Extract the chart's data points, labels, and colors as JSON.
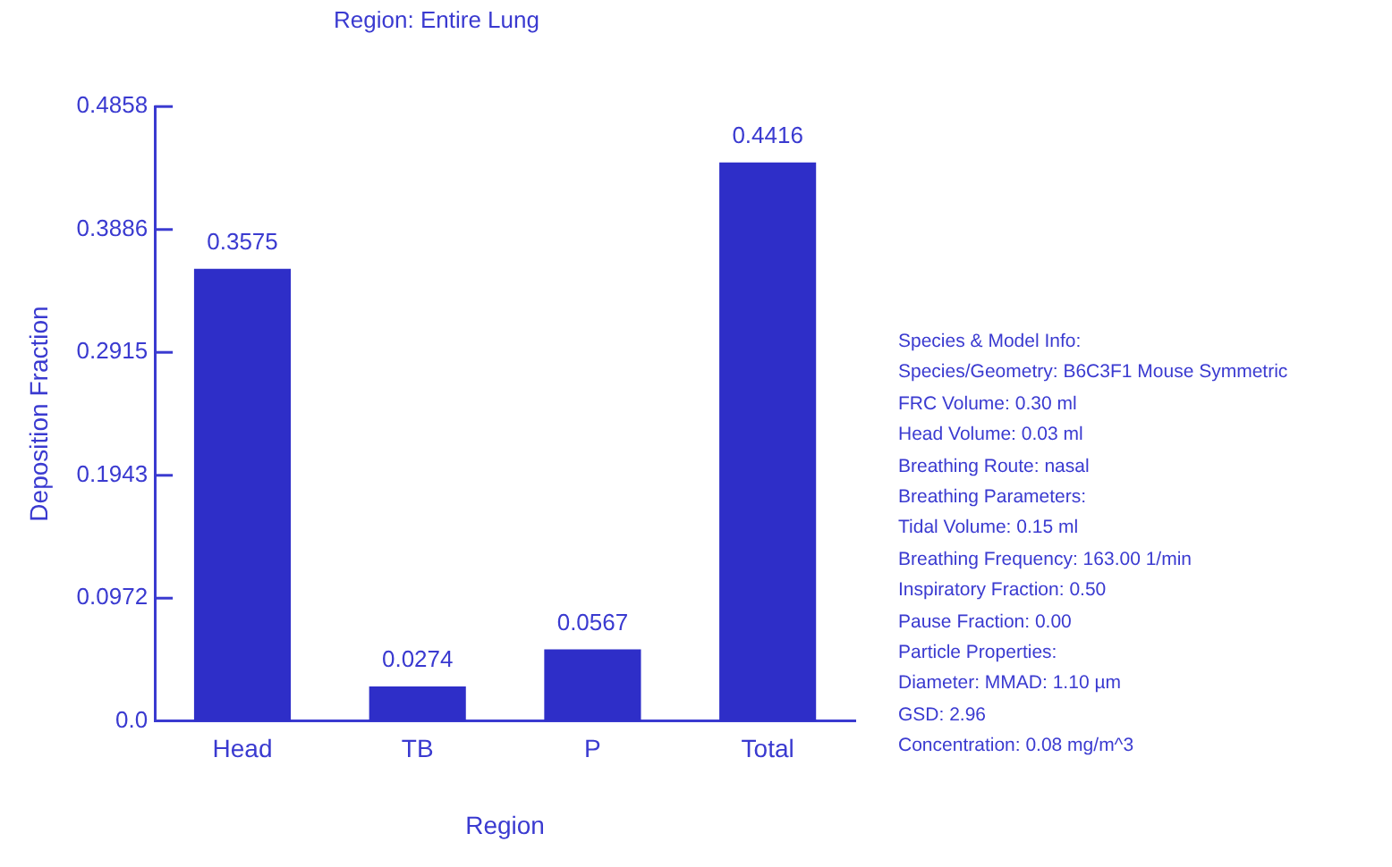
{
  "chart_data": {
    "type": "bar",
    "title": "Region: Entire Lung",
    "xlabel": "Region",
    "ylabel": "Deposition Fraction",
    "categories": [
      "Head",
      "TB",
      "P",
      "Total"
    ],
    "values": [
      0.3575,
      0.0274,
      0.0567,
      0.4416
    ],
    "color": "#2e2ec8",
    "data_labels": true,
    "ylim": [
      0,
      0.4858
    ],
    "yticks": [
      {
        "value": 0,
        "label": "0.0"
      },
      0.0972,
      0.1943,
      0.2915,
      0.3886,
      0.4858
    ],
    "grid": false,
    "legend": false,
    "annotations": [
      "Species & Model Info:",
      "Species/Geometry: B6C3F1 Mouse Symmetric",
      "FRC Volume: 0.30 ml",
      "Head Volume: 0.03 ml",
      "Breathing Route: nasal",
      "Breathing Parameters:",
      "Tidal Volume: 0.15 ml",
      "Breathing Frequency: 163.00 1/min",
      "Inspiratory Fraction: 0.50",
      "Pause Fraction: 0.00",
      "Particle Properties:",
      "Diameter: MMAD: 1.10 µm",
      "GSD: 2.96",
      "Concentration: 0.08 mg/m^3"
    ]
  }
}
